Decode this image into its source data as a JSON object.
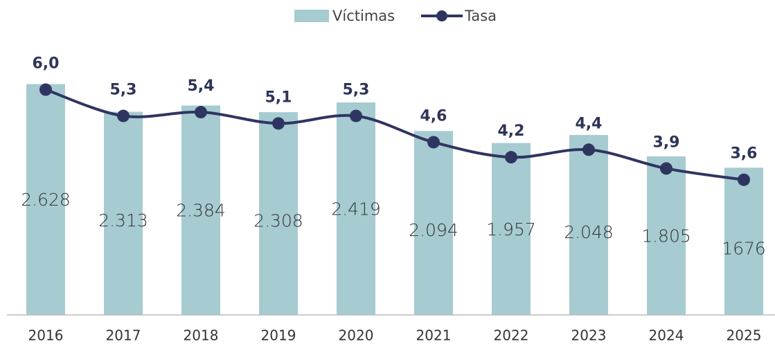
{
  "chart_data": {
    "type": "bar",
    "categories": [
      "2016",
      "2017",
      "2018",
      "2019",
      "2020",
      "2021",
      "2022",
      "2023",
      "2024",
      "2025"
    ],
    "series": [
      {
        "name": "Víctimas",
        "color": "#a6cbd1",
        "values": [
          2628,
          2313,
          2384,
          2308,
          2419,
          2094,
          1957,
          2048,
          1805,
          1676
        ],
        "value_labels": [
          "2.628",
          "2.313",
          "2.384",
          "2.308",
          "2.419",
          "2.094",
          "1.957",
          "2.048",
          "1.805",
          "1676"
        ]
      },
      {
        "name": "Tasa",
        "type": "line",
        "axis": "y2",
        "color": "#2f3561",
        "values": [
          6.0,
          5.3,
          5.4,
          5.1,
          5.3,
          4.6,
          4.2,
          4.4,
          3.9,
          3.6
        ],
        "value_labels": [
          "6,0",
          "5,3",
          "5,4",
          "5,1",
          "5,3",
          "4,6",
          "4,2",
          "4,4",
          "3,9",
          "3,6"
        ]
      }
    ],
    "ylim": [
      0,
      3270
    ],
    "y2lim": [
      0,
      7.65
    ],
    "legend": "top"
  }
}
